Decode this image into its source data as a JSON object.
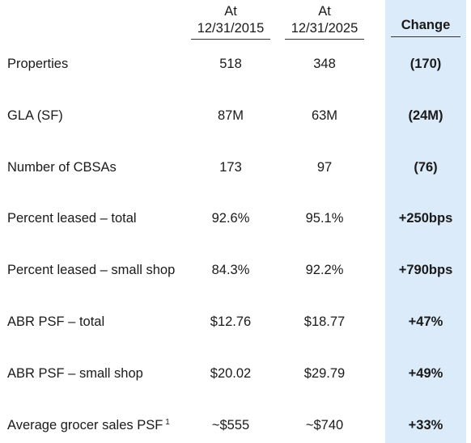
{
  "columns": {
    "col1": [
      "At",
      "12/31/2015"
    ],
    "col2": [
      "At",
      "12/31/2025"
    ],
    "change": "Change"
  },
  "rows": [
    {
      "label": "Properties",
      "v2015": "518",
      "v2025": "348",
      "change": "(170)"
    },
    {
      "label": "GLA (SF)",
      "v2015": "87M",
      "v2025": "63M",
      "change": "(24M)"
    },
    {
      "label": "Number of CBSAs",
      "v2015": "173",
      "v2025": "97",
      "change": "(76)"
    },
    {
      "label": "Percent leased – total",
      "v2015": "92.6%",
      "v2025": "95.1%",
      "change": "+250bps"
    },
    {
      "label": "Percent leased – small shop",
      "v2015": "84.3%",
      "v2025": "92.2%",
      "change": "+790bps"
    },
    {
      "label": "ABR PSF – total",
      "v2015": "$12.76",
      "v2025": "$18.77",
      "change": "+47%"
    },
    {
      "label": "ABR PSF – small shop",
      "v2015": "$20.02",
      "v2025": "$29.79",
      "change": "+49%"
    },
    {
      "label": "Average grocer sales PSF",
      "footnote": "1",
      "v2015": "~$555",
      "v2025": "~$740",
      "change": "+33%"
    }
  ],
  "colors": {
    "change_band": "#dcebfa",
    "text": "#1a1a1a"
  }
}
